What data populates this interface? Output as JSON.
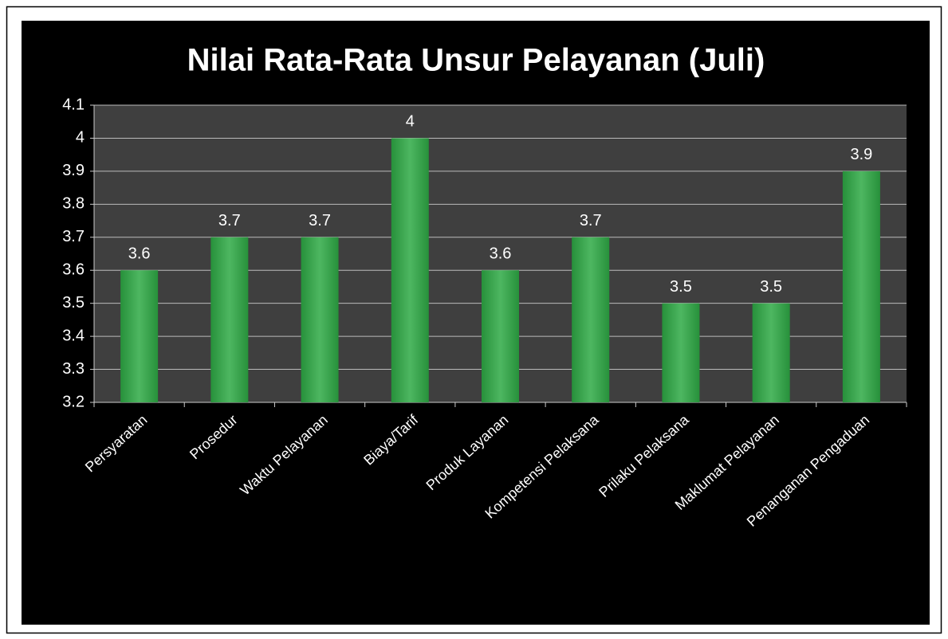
{
  "chart_data": {
    "type": "bar",
    "title": "Nilai Rata-Rata Unsur Pelayanan (Juli)",
    "categories": [
      "Persyaratan",
      "Prosedur",
      "Waktu Pelayanan",
      "Biaya/Tarif",
      "Produk Layanan",
      "Kompetensi Pelaksana",
      "Prilaku Pelaksana",
      "Maklumat Pelayanan",
      "Penanganan Pengaduan"
    ],
    "values": [
      3.6,
      3.7,
      3.7,
      4,
      3.6,
      3.7,
      3.5,
      3.5,
      3.9
    ],
    "color": "#2eaa45",
    "ylim": [
      3.2,
      4.1
    ],
    "yticks": [
      3.2,
      3.3,
      3.4,
      3.5,
      3.6,
      3.7,
      3.8,
      3.9,
      4,
      4.1
    ],
    "grid": true
  }
}
